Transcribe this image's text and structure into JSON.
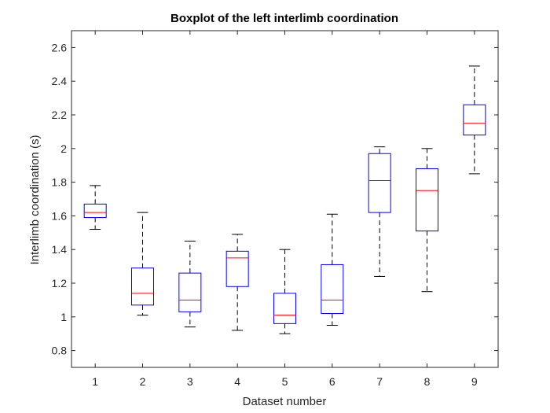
{
  "chart_data": {
    "type": "boxplot",
    "title": "Boxplot of the left interlimb coordination",
    "xlabel": "Dataset number",
    "ylabel": "Interlimb coordination (s)",
    "categories": [
      "1",
      "2",
      "3",
      "4",
      "5",
      "6",
      "7",
      "8",
      "9"
    ],
    "ylim": [
      0.7,
      2.7
    ],
    "yticks": [
      0.8,
      1,
      1.2,
      1.4,
      1.6,
      1.8,
      2,
      2.2,
      2.4,
      2.6
    ],
    "ytick_labels": [
      "0.8",
      "1",
      "1.2",
      "1.4",
      "1.6",
      "1.8",
      "2",
      "2.2",
      "2.4",
      "2.6"
    ],
    "grid": false,
    "boxes": [
      {
        "category": "1",
        "whisker_low": 1.52,
        "q1": 1.59,
        "median": 1.62,
        "q3": 1.67,
        "whisker_high": 1.78
      },
      {
        "category": "2",
        "whisker_low": 1.01,
        "q1": 1.07,
        "median": 1.14,
        "q3": 1.29,
        "whisker_high": 1.62
      },
      {
        "category": "3",
        "whisker_low": 0.94,
        "q1": 1.03,
        "median": 1.1,
        "q3": 1.26,
        "whisker_high": 1.45
      },
      {
        "category": "4",
        "whisker_low": 0.92,
        "q1": 1.18,
        "median": 1.35,
        "q3": 1.39,
        "whisker_high": 1.49
      },
      {
        "category": "5",
        "whisker_low": 0.9,
        "q1": 0.96,
        "median": 1.01,
        "q3": 1.14,
        "whisker_high": 1.4
      },
      {
        "category": "6",
        "whisker_low": 0.95,
        "q1": 1.02,
        "median": 1.1,
        "q3": 1.31,
        "whisker_high": 1.61
      },
      {
        "category": "7",
        "whisker_low": 1.24,
        "q1": 1.62,
        "median": 1.81,
        "q3": 1.97,
        "whisker_high": 2.01
      },
      {
        "category": "8",
        "whisker_low": 1.15,
        "q1": 1.51,
        "median": 1.75,
        "q3": 1.88,
        "whisker_high": 2.0
      },
      {
        "category": "9",
        "whisker_low": 1.85,
        "q1": 2.08,
        "median": 2.15,
        "q3": 2.26,
        "whisker_high": 2.49
      }
    ],
    "colors": {
      "box": "#0000ff",
      "median": "#ff0000",
      "whisker": "#000000",
      "axis": "#262626"
    }
  }
}
